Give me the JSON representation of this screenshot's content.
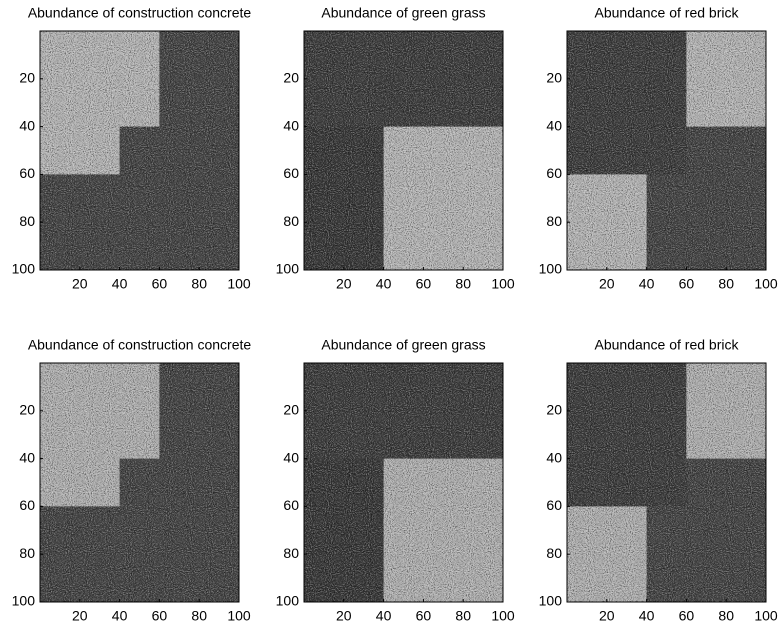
{
  "chart_data": [
    {
      "type": "image",
      "title": "Abundance of construction concrete",
      "colormap": "gray",
      "clim": [
        0,
        1
      ],
      "x_edges": [
        0,
        20,
        40,
        60,
        80,
        100
      ],
      "y_edges": [
        0,
        20,
        40,
        60,
        80,
        100
      ],
      "z": [
        [
          0.72,
          0.72,
          0.72,
          0.25,
          0.25
        ],
        [
          0.72,
          0.72,
          0.72,
          0.25,
          0.25
        ],
        [
          0.72,
          0.72,
          0.25,
          0.25,
          0.25
        ],
        [
          0.25,
          0.25,
          0.25,
          0.25,
          0.25
        ],
        [
          0.25,
          0.25,
          0.25,
          0.25,
          0.25
        ]
      ],
      "xlim": [
        0,
        100
      ],
      "ylim": [
        100,
        0
      ],
      "xticks": [
        20,
        40,
        60,
        80,
        100
      ],
      "yticks": [
        20,
        40,
        60,
        80,
        100
      ]
    },
    {
      "type": "image",
      "title": "Abundance of green grass",
      "colormap": "gray",
      "clim": [
        0,
        1
      ],
      "x_edges": [
        0,
        20,
        40,
        60,
        80,
        100
      ],
      "y_edges": [
        0,
        20,
        40,
        60,
        80,
        100
      ],
      "z": [
        [
          0.22,
          0.22,
          0.22,
          0.22,
          0.22
        ],
        [
          0.22,
          0.22,
          0.22,
          0.22,
          0.22
        ],
        [
          0.2,
          0.2,
          0.72,
          0.72,
          0.72
        ],
        [
          0.2,
          0.2,
          0.72,
          0.72,
          0.72
        ],
        [
          0.2,
          0.2,
          0.72,
          0.72,
          0.72
        ]
      ],
      "xlim": [
        0,
        100
      ],
      "ylim": [
        100,
        0
      ],
      "xticks": [
        20,
        40,
        60,
        80,
        100
      ],
      "yticks": [
        20,
        40,
        60,
        80,
        100
      ]
    },
    {
      "type": "image",
      "title": "Abundance of red brick",
      "colormap": "gray",
      "clim": [
        0,
        1
      ],
      "x_edges": [
        0,
        20,
        40,
        60,
        80,
        100
      ],
      "y_edges": [
        0,
        20,
        40,
        60,
        80,
        100
      ],
      "z": [
        [
          0.22,
          0.22,
          0.22,
          0.72,
          0.72
        ],
        [
          0.22,
          0.22,
          0.22,
          0.72,
          0.72
        ],
        [
          0.22,
          0.22,
          0.22,
          0.25,
          0.25
        ],
        [
          0.72,
          0.72,
          0.25,
          0.25,
          0.25
        ],
        [
          0.72,
          0.72,
          0.25,
          0.25,
          0.25
        ]
      ],
      "xlim": [
        0,
        100
      ],
      "ylim": [
        100,
        0
      ],
      "xticks": [
        20,
        40,
        60,
        80,
        100
      ],
      "yticks": [
        20,
        40,
        60,
        80,
        100
      ]
    },
    {
      "type": "image",
      "title": "Abundance of construction concrete",
      "colormap": "gray",
      "clim": [
        0,
        1
      ],
      "x_edges": [
        0,
        20,
        40,
        60,
        80,
        100
      ],
      "y_edges": [
        0,
        20,
        40,
        60,
        80,
        100
      ],
      "z": [
        [
          0.7,
          0.7,
          0.7,
          0.25,
          0.25
        ],
        [
          0.7,
          0.7,
          0.7,
          0.25,
          0.25
        ],
        [
          0.7,
          0.7,
          0.25,
          0.25,
          0.25
        ],
        [
          0.25,
          0.25,
          0.25,
          0.25,
          0.25
        ],
        [
          0.25,
          0.25,
          0.25,
          0.25,
          0.25
        ]
      ],
      "xlim": [
        0,
        100
      ],
      "ylim": [
        100,
        0
      ],
      "xticks": [
        20,
        40,
        60,
        80,
        100
      ],
      "yticks": [
        20,
        40,
        60,
        80,
        100
      ]
    },
    {
      "type": "image",
      "title": "Abundance of green grass",
      "colormap": "gray",
      "clim": [
        0,
        1
      ],
      "x_edges": [
        0,
        20,
        40,
        60,
        80,
        100
      ],
      "y_edges": [
        0,
        20,
        40,
        60,
        80,
        100
      ],
      "z": [
        [
          0.22,
          0.22,
          0.22,
          0.22,
          0.22
        ],
        [
          0.22,
          0.22,
          0.22,
          0.22,
          0.22
        ],
        [
          0.2,
          0.2,
          0.7,
          0.7,
          0.7
        ],
        [
          0.2,
          0.2,
          0.7,
          0.7,
          0.7
        ],
        [
          0.2,
          0.2,
          0.7,
          0.7,
          0.7
        ]
      ],
      "xlim": [
        0,
        100
      ],
      "ylim": [
        100,
        0
      ],
      "xticks": [
        20,
        40,
        60,
        80,
        100
      ],
      "yticks": [
        20,
        40,
        60,
        80,
        100
      ]
    },
    {
      "type": "image",
      "title": "Abundance of red brick",
      "colormap": "gray",
      "clim": [
        0,
        1
      ],
      "x_edges": [
        0,
        20,
        40,
        60,
        80,
        100
      ],
      "y_edges": [
        0,
        20,
        40,
        60,
        80,
        100
      ],
      "z": [
        [
          0.22,
          0.22,
          0.22,
          0.7,
          0.7
        ],
        [
          0.22,
          0.22,
          0.22,
          0.7,
          0.7
        ],
        [
          0.22,
          0.22,
          0.22,
          0.25,
          0.25
        ],
        [
          0.7,
          0.7,
          0.25,
          0.25,
          0.25
        ],
        [
          0.7,
          0.7,
          0.25,
          0.25,
          0.25
        ]
      ],
      "xlim": [
        0,
        100
      ],
      "ylim": [
        100,
        0
      ],
      "xticks": [
        20,
        40,
        60,
        80,
        100
      ],
      "yticks": [
        20,
        40,
        60,
        80,
        100
      ]
    }
  ]
}
